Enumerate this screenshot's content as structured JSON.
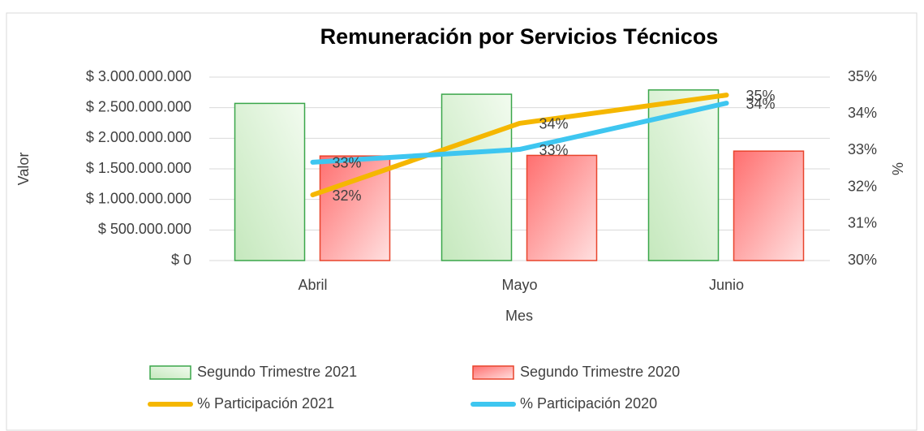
{
  "chart_data": {
    "type": "bar",
    "title": "Remuneración por Servicios Técnicos",
    "x_label": "Mes",
    "y_label": "Valor",
    "y2_label": "%",
    "categories": [
      "Abril",
      "Mayo",
      "Junio"
    ],
    "series": [
      {
        "name": "Segundo Trimestre  2021",
        "type": "bar",
        "color": "#3aa64a",
        "values": [
          2570000000,
          2720000000,
          2790000000
        ]
      },
      {
        "name": "Segundo Trimestre  2020",
        "type": "bar",
        "color": "#e8442c",
        "values": [
          1710000000,
          1720000000,
          1790000000
        ]
      },
      {
        "name": "% Participación 2021",
        "type": "line",
        "axis": "y2",
        "color": "#f5b700",
        "values": [
          31.79,
          33.74,
          34.51
        ],
        "value_labels": [
          "32%",
          "34%",
          "35%"
        ]
      },
      {
        "name": "% Participación 2020",
        "type": "line",
        "axis": "y2",
        "color": "#3ec6f0",
        "values": [
          32.68,
          33.03,
          34.29
        ],
        "value_labels": [
          "33%",
          "33%",
          "34%"
        ]
      }
    ],
    "ylim": [
      0,
      3000000000
    ],
    "yticks": [
      {
        "value": 0,
        "label": "$ 0"
      },
      {
        "value": 500000000,
        "label": "$ 500.000.000"
      },
      {
        "value": 1000000000,
        "label": "$ 1.000.000.000"
      },
      {
        "value": 1500000000,
        "label": "$ 1.500.000.000"
      },
      {
        "value": 2000000000,
        "label": "$ 2.000.000.000"
      },
      {
        "value": 2500000000,
        "label": "$ 2.500.000.000"
      },
      {
        "value": 3000000000,
        "label": "$ 3.000.000.000"
      }
    ],
    "y2lim": [
      30,
      35
    ],
    "y2ticks": [
      {
        "value": 30,
        "label": "30%"
      },
      {
        "value": 31,
        "label": "31%"
      },
      {
        "value": 32,
        "label": "32%"
      },
      {
        "value": 33,
        "label": "33%"
      },
      {
        "value": 34,
        "label": "34%"
      },
      {
        "value": 35,
        "label": "35%"
      }
    ],
    "grid": true
  }
}
